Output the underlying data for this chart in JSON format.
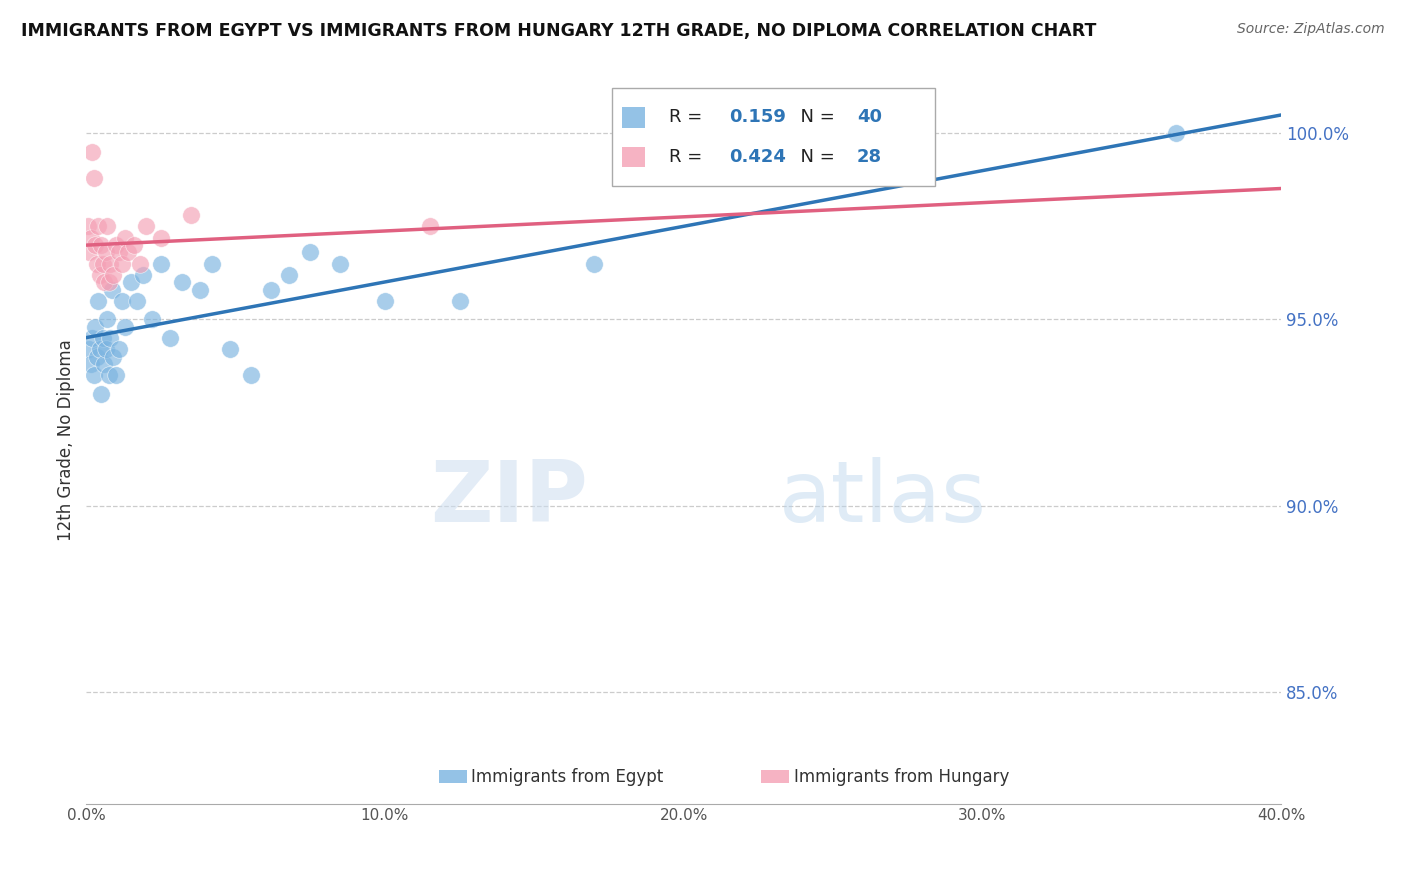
{
  "title": "IMMIGRANTS FROM EGYPT VS IMMIGRANTS FROM HUNGARY 12TH GRADE, NO DIPLOMA CORRELATION CHART",
  "source": "Source: ZipAtlas.com",
  "ylabel": "12th Grade, No Diploma",
  "xlim": [
    0.0,
    40.0
  ],
  "ylim": [
    82.0,
    101.5
  ],
  "yticks": [
    85.0,
    90.0,
    95.0,
    100.0
  ],
  "xticks": [
    0.0,
    10.0,
    20.0,
    30.0,
    40.0
  ],
  "egypt_R": 0.159,
  "egypt_N": 40,
  "hungary_R": 0.424,
  "hungary_N": 28,
  "egypt_color": "#7ab3e0",
  "hungary_color": "#f4a0b5",
  "egypt_line_color": "#2e75b6",
  "hungary_line_color": "#e06080",
  "background_color": "#ffffff",
  "grid_color": "#cccccc",
  "watermark_zip": "ZIP",
  "watermark_atlas": "atlas",
  "egypt_x": [
    0.1,
    0.15,
    0.2,
    0.25,
    0.3,
    0.35,
    0.4,
    0.45,
    0.5,
    0.55,
    0.6,
    0.65,
    0.7,
    0.75,
    0.8,
    0.85,
    0.9,
    1.0,
    1.1,
    1.2,
    1.3,
    1.5,
    1.7,
    1.9,
    2.2,
    2.5,
    2.8,
    3.2,
    3.8,
    4.2,
    4.8,
    5.5,
    6.2,
    6.8,
    7.5,
    8.5,
    10.0,
    12.5,
    17.0,
    36.5
  ],
  "egypt_y": [
    94.2,
    93.8,
    94.5,
    93.5,
    94.8,
    94.0,
    95.5,
    94.2,
    93.0,
    94.5,
    93.8,
    94.2,
    95.0,
    93.5,
    94.5,
    95.8,
    94.0,
    93.5,
    94.2,
    95.5,
    94.8,
    96.0,
    95.5,
    96.2,
    95.0,
    96.5,
    94.5,
    96.0,
    95.8,
    96.5,
    94.2,
    93.5,
    95.8,
    96.2,
    96.8,
    96.5,
    95.5,
    95.5,
    96.5,
    100.0
  ],
  "hungary_x": [
    0.05,
    0.1,
    0.15,
    0.2,
    0.25,
    0.3,
    0.35,
    0.4,
    0.45,
    0.5,
    0.55,
    0.6,
    0.65,
    0.7,
    0.75,
    0.8,
    0.9,
    1.0,
    1.1,
    1.2,
    1.3,
    1.4,
    1.6,
    1.8,
    2.0,
    2.5,
    3.5,
    11.5
  ],
  "hungary_y": [
    97.5,
    96.8,
    97.2,
    99.5,
    98.8,
    97.0,
    96.5,
    97.5,
    96.2,
    97.0,
    96.5,
    96.0,
    96.8,
    97.5,
    96.0,
    96.5,
    96.2,
    97.0,
    96.8,
    96.5,
    97.2,
    96.8,
    97.0,
    96.5,
    97.5,
    97.2,
    97.8,
    97.5
  ]
}
